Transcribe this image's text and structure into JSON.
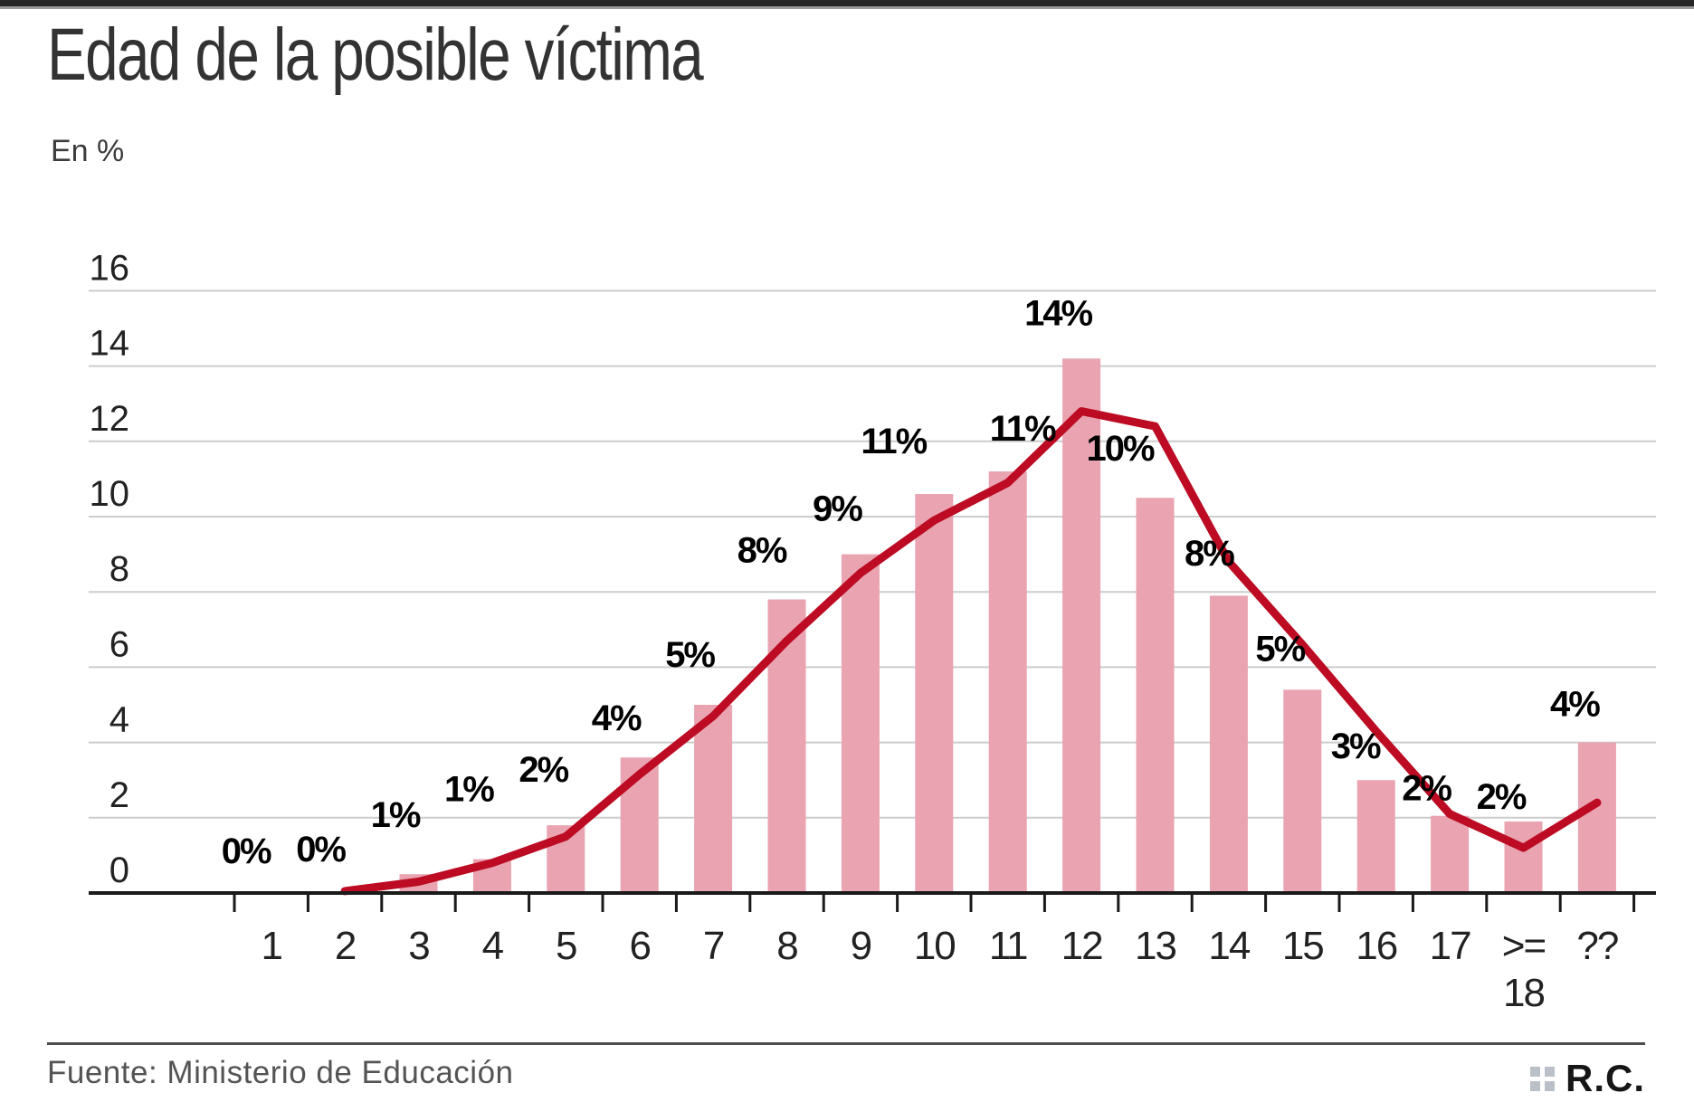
{
  "header": {
    "title": "Edad de la posible víctima",
    "units_label": "En %"
  },
  "chart_data": {
    "type": "bar",
    "title": "Edad de la posible víctima",
    "xlabel": "",
    "ylabel": "En %",
    "ylim": [
      0,
      16
    ],
    "yticks": [
      0,
      2,
      4,
      6,
      8,
      10,
      12,
      14,
      16
    ],
    "grid": true,
    "legend": false,
    "categories": [
      "1",
      "2",
      "3",
      "4",
      "5",
      "6",
      "7",
      "8",
      "9",
      "10",
      "11",
      "12",
      "13",
      "14",
      "15",
      "16",
      "17",
      ">=\n18",
      "??"
    ],
    "series": [
      {
        "name": "porcentaje-barras",
        "type": "bar",
        "values": [
          0,
          0,
          1,
          1,
          2,
          4,
          5,
          8,
          9,
          11,
          11,
          14,
          10,
          8,
          5,
          3,
          2,
          2,
          4
        ],
        "labels": [
          "0%",
          "0%",
          "1%",
          "1%",
          "2%",
          "4%",
          "5%",
          "8%",
          "9%",
          "11%",
          "11%",
          "14%",
          "10%",
          "8%",
          "5%",
          "3%",
          "2%",
          "2%",
          "4%"
        ],
        "bar_heights_precise": [
          0,
          0,
          0.5,
          0.9,
          1.8,
          3.6,
          5.0,
          7.8,
          9.0,
          10.6,
          11.2,
          14.2,
          10.5,
          7.9,
          5.4,
          3.0,
          2.05,
          1.9,
          4.0
        ]
      },
      {
        "name": "tendencia-linea",
        "type": "line",
        "values": [
          null,
          0.05,
          0.3,
          0.8,
          1.5,
          3.15,
          4.7,
          6.7,
          8.5,
          9.9,
          10.9,
          12.8,
          12.4,
          8.8,
          6.6,
          4.3,
          2.1,
          1.2,
          2.4
        ]
      }
    ]
  },
  "footer": {
    "source": "Fuente: Ministerio de Educación",
    "logo_text": "R.C."
  },
  "colors": {
    "bar": "#e9a3b1",
    "line": "#bc0b22",
    "grid": "#cccccc",
    "axis": "#1a1a1a",
    "topbar_dark": "#262626",
    "topbar_edge": "#9a9a9a",
    "title_text": "#333333",
    "units_text": "#3b3b3b",
    "tick_text": "#222222",
    "data_label": "#000000",
    "divider": "#4c4c4c",
    "source_text": "#545454",
    "logo_squares": "#b9c0c7",
    "logo_text": "#161616"
  }
}
